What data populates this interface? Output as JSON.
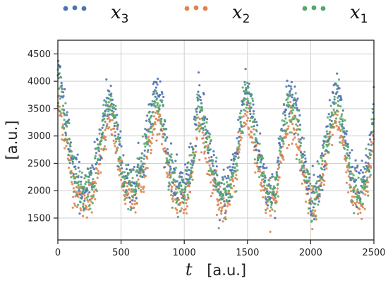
{
  "chart_data": {
    "type": "scatter",
    "title": "",
    "xlabel": "t",
    "xlabel_unit": "[a.u.]",
    "ylabel": "[a.u.]",
    "xlim": [
      0,
      2500
    ],
    "ylim": [
      1100,
      4750
    ],
    "xticks": [
      0,
      500,
      1000,
      1500,
      2000,
      2500
    ],
    "yticks": [
      1500,
      2000,
      2500,
      3000,
      3500,
      4000,
      4500
    ],
    "grid": true,
    "legend_position": "top",
    "series": [
      {
        "name": "x",
        "subscript": "3",
        "color": "#4c72b0",
        "mean_curve": {
          "x": [
            0,
            30,
            80,
            120,
            200,
            280,
            330,
            380,
            420,
            470,
            520,
            600,
            680,
            730,
            780,
            830,
            880,
            940,
            1000,
            1060,
            1110,
            1160,
            1220,
            1280,
            1350,
            1420,
            1480,
            1540,
            1600,
            1660,
            1720,
            1770,
            1830,
            1880,
            1940,
            2000,
            2060,
            2110,
            2170,
            2210,
            2260,
            2330,
            2400,
            2460,
            2500
          ],
          "y": [
            4200,
            3800,
            3100,
            2400,
            2000,
            2200,
            3000,
            3500,
            3800,
            3100,
            2300,
            2100,
            2700,
            3400,
            3900,
            3500,
            2500,
            2000,
            2100,
            2600,
            3700,
            3300,
            2500,
            1900,
            2100,
            2800,
            3900,
            3500,
            2600,
            2000,
            2100,
            3100,
            3800,
            3600,
            2600,
            1900,
            2100,
            2800,
            3500,
            3900,
            3200,
            2200,
            2000,
            2500,
            3600
          ]
        },
        "spread": 380
      },
      {
        "name": "x",
        "subscript": "2",
        "color": "#dd8452",
        "mean_curve": {
          "x": [
            0,
            30,
            80,
            120,
            200,
            280,
            330,
            380,
            420,
            470,
            520,
            600,
            680,
            730,
            780,
            830,
            880,
            940,
            1000,
            1060,
            1110,
            1160,
            1220,
            1280,
            1350,
            1420,
            1480,
            1540,
            1600,
            1660,
            1720,
            1770,
            1830,
            1880,
            1940,
            2000,
            2060,
            2110,
            2170,
            2210,
            2260,
            2330,
            2400,
            2460,
            2500
          ],
          "y": [
            3600,
            3300,
            2700,
            2100,
            1800,
            1900,
            2600,
            3000,
            3300,
            2700,
            2000,
            1800,
            2300,
            2900,
            3300,
            3000,
            2200,
            1800,
            1800,
            2300,
            3200,
            2900,
            2200,
            1700,
            1800,
            2500,
            3400,
            3100,
            2300,
            1800,
            1800,
            2700,
            3300,
            3100,
            2300,
            1700,
            1800,
            2500,
            3100,
            3400,
            2800,
            1900,
            1700,
            2200,
            3100
          ]
        },
        "spread": 300
      },
      {
        "name": "x",
        "subscript": "1",
        "color": "#55a868",
        "mean_curve": {
          "x": [
            0,
            30,
            80,
            120,
            200,
            280,
            330,
            380,
            420,
            470,
            520,
            600,
            680,
            730,
            780,
            830,
            880,
            940,
            1000,
            1060,
            1110,
            1160,
            1220,
            1280,
            1350,
            1420,
            1480,
            1540,
            1600,
            1660,
            1720,
            1770,
            1830,
            1880,
            1940,
            2000,
            2060,
            2110,
            2170,
            2210,
            2260,
            2330,
            2400,
            2460,
            2500
          ],
          "y": [
            4000,
            3650,
            2950,
            2300,
            1950,
            2100,
            2850,
            3350,
            3650,
            2950,
            2200,
            2000,
            2600,
            3250,
            3700,
            3350,
            2400,
            1950,
            2000,
            2500,
            3550,
            3150,
            2400,
            1850,
            2000,
            2700,
            3750,
            3350,
            2500,
            1950,
            2000,
            2950,
            3650,
            3450,
            2500,
            1850,
            2000,
            2700,
            3350,
            3750,
            3050,
            2100,
            1900,
            2400,
            3450
          ]
        },
        "spread": 360
      }
    ]
  }
}
